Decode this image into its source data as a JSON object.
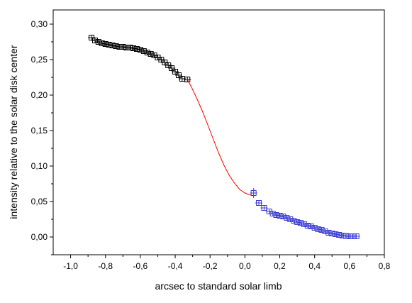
{
  "chart_data": {
    "type": "scatter",
    "title": "",
    "xlabel": "arcsec to standard solar limb",
    "ylabel": "intensity relative to the solar disk center",
    "xlim": [
      -1.1,
      0.8
    ],
    "ylim": [
      -0.025,
      0.32
    ],
    "x_ticks": [
      -1.0,
      -0.8,
      -0.6,
      -0.4,
      -0.2,
      0.0,
      0.2,
      0.4,
      0.6,
      0.8
    ],
    "x_tick_labels": [
      "-1,0",
      "-0,8",
      "-0,6",
      "-0,4",
      "-0,2",
      "0,0",
      "0,2",
      "0,4",
      "0,6",
      "0,8"
    ],
    "y_ticks": [
      0.0,
      0.05,
      0.1,
      0.15,
      0.2,
      0.25,
      0.3
    ],
    "y_tick_labels": [
      "0,00",
      "0,05",
      "0,10",
      "0,15",
      "0,20",
      "0,25",
      "0,30"
    ],
    "grid": false,
    "legend": "none",
    "series": [
      {
        "color": "#000000",
        "marker": "open-square-with-errorbars",
        "points": [
          [
            -0.88,
            0.281
          ],
          [
            -0.86,
            0.277
          ],
          [
            -0.84,
            0.275
          ],
          [
            -0.82,
            0.273
          ],
          [
            -0.8,
            0.272
          ],
          [
            -0.78,
            0.271
          ],
          [
            -0.76,
            0.27
          ],
          [
            -0.74,
            0.269
          ],
          [
            -0.72,
            0.268
          ],
          [
            -0.7,
            0.268
          ],
          [
            -0.68,
            0.267
          ],
          [
            -0.66,
            0.267
          ],
          [
            -0.64,
            0.266
          ],
          [
            -0.62,
            0.265
          ],
          [
            -0.6,
            0.264
          ],
          [
            -0.58,
            0.262
          ],
          [
            -0.56,
            0.26
          ],
          [
            -0.54,
            0.258
          ],
          [
            -0.52,
            0.256
          ],
          [
            -0.5,
            0.253
          ],
          [
            -0.48,
            0.25
          ],
          [
            -0.46,
            0.246
          ],
          [
            -0.44,
            0.242
          ],
          [
            -0.42,
            0.238
          ],
          [
            -0.4,
            0.233
          ],
          [
            -0.38,
            0.228
          ],
          [
            -0.36,
            0.223
          ],
          [
            -0.33,
            0.222
          ]
        ]
      },
      {
        "color": "#3b3bd4",
        "marker": "open-square-with-errorbars",
        "points": [
          [
            0.05,
            0.062
          ],
          [
            0.08,
            0.048
          ],
          [
            0.11,
            0.041
          ],
          [
            0.14,
            0.036
          ],
          [
            0.16,
            0.033
          ],
          [
            0.18,
            0.031
          ],
          [
            0.2,
            0.03
          ],
          [
            0.22,
            0.029
          ],
          [
            0.24,
            0.027
          ],
          [
            0.26,
            0.025
          ],
          [
            0.28,
            0.023
          ],
          [
            0.3,
            0.021
          ],
          [
            0.32,
            0.02
          ],
          [
            0.34,
            0.018
          ],
          [
            0.36,
            0.016
          ],
          [
            0.38,
            0.015
          ],
          [
            0.4,
            0.013
          ],
          [
            0.42,
            0.011
          ],
          [
            0.44,
            0.01
          ],
          [
            0.46,
            0.008
          ],
          [
            0.48,
            0.006
          ],
          [
            0.5,
            0.005
          ],
          [
            0.52,
            0.004
          ],
          [
            0.54,
            0.003
          ],
          [
            0.56,
            0.002
          ],
          [
            0.58,
            0.0015
          ],
          [
            0.6,
            0.001
          ],
          [
            0.62,
            0.001
          ],
          [
            0.64,
            0.001
          ]
        ]
      },
      {
        "color": "#ff0000",
        "marker": "line",
        "points": [
          [
            -0.33,
            0.222
          ],
          [
            -0.3,
            0.208
          ],
          [
            -0.27,
            0.192
          ],
          [
            -0.24,
            0.175
          ],
          [
            -0.21,
            0.156
          ],
          [
            -0.18,
            0.137
          ],
          [
            -0.15,
            0.118
          ],
          [
            -0.12,
            0.101
          ],
          [
            -0.09,
            0.087
          ],
          [
            -0.06,
            0.076
          ],
          [
            -0.03,
            0.067
          ],
          [
            0.0,
            0.062
          ],
          [
            0.02,
            0.06
          ],
          [
            0.05,
            0.058
          ]
        ]
      }
    ]
  }
}
